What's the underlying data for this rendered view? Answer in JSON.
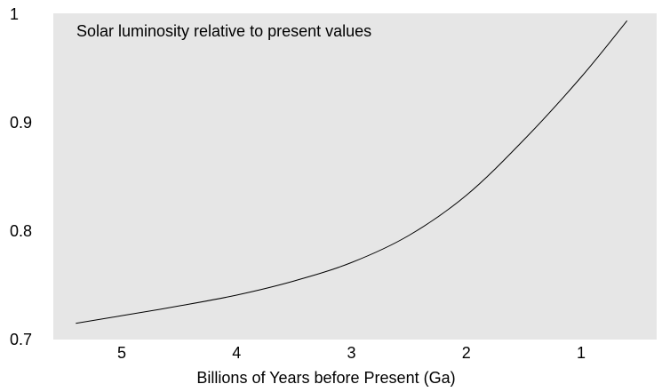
{
  "chart_data": {
    "type": "line",
    "title": "Solar luminosity relative to present values",
    "xlabel": "Billions of Years before Present (Ga)",
    "ylabel": "",
    "x_reversed": true,
    "xlim": [
      5.5,
      0.3
    ],
    "ylim": [
      0.7,
      1.0
    ],
    "x_ticks": [
      5,
      4,
      3,
      2,
      1
    ],
    "y_ticks": [
      0.7,
      0.8,
      0.9,
      1
    ],
    "y_tick_labels": [
      "0.7",
      "0.8",
      "0.9",
      "1"
    ],
    "grid": false,
    "legend": "none",
    "background_color": "#e6e6e6",
    "line_color": "#000000",
    "series": [
      {
        "x": [
          5.4,
          5.0,
          4.5,
          4.0,
          3.5,
          3.0,
          2.5,
          2.0,
          1.5,
          1.0,
          0.6
        ],
        "values": [
          0.715,
          0.722,
          0.731,
          0.741,
          0.754,
          0.771,
          0.796,
          0.833,
          0.884,
          0.942,
          0.994
        ]
      }
    ]
  }
}
